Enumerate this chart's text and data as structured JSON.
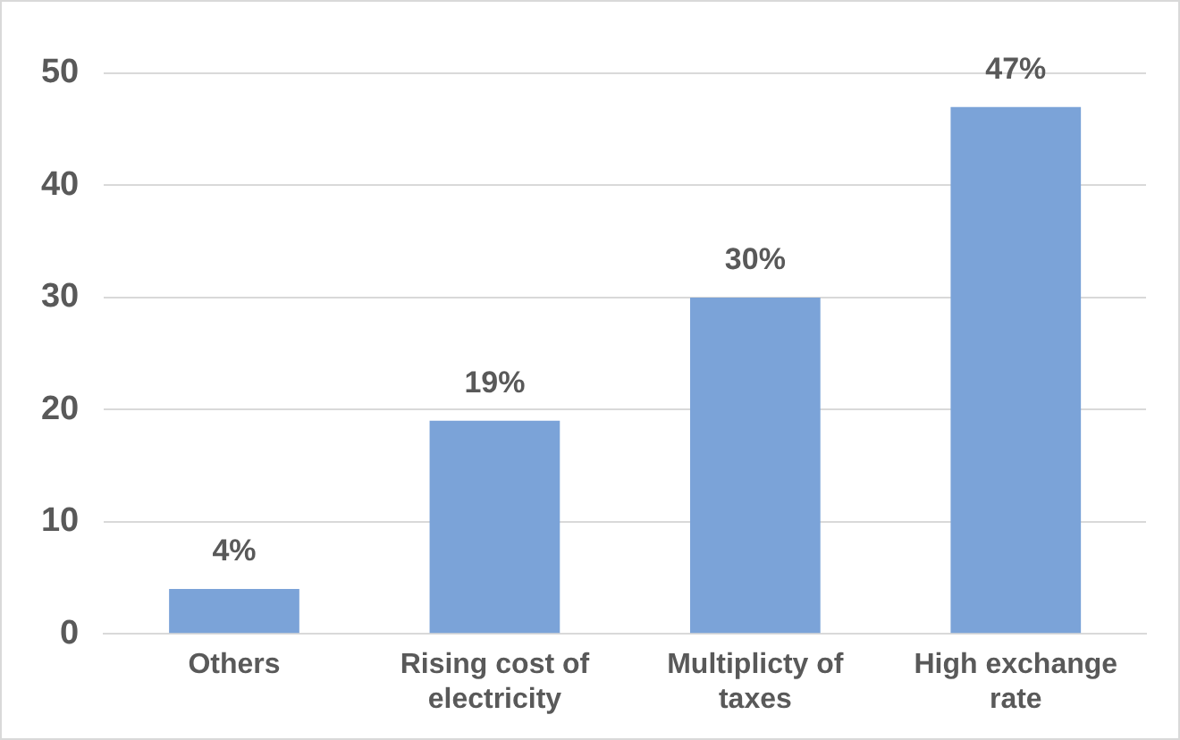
{
  "chart_data": {
    "type": "bar",
    "categories": [
      "Others",
      "Rising cost of electricity",
      "Multiplicty of taxes",
      "High exchange rate"
    ],
    "values": [
      4,
      19,
      30,
      47
    ],
    "value_labels": [
      "4%",
      "19%",
      "30%",
      "47%"
    ],
    "color": "#7ba3d8",
    "ylim": [
      0,
      50
    ],
    "yticks": [
      0,
      10,
      20,
      30,
      40,
      50
    ],
    "grid": "y",
    "legend": false
  }
}
